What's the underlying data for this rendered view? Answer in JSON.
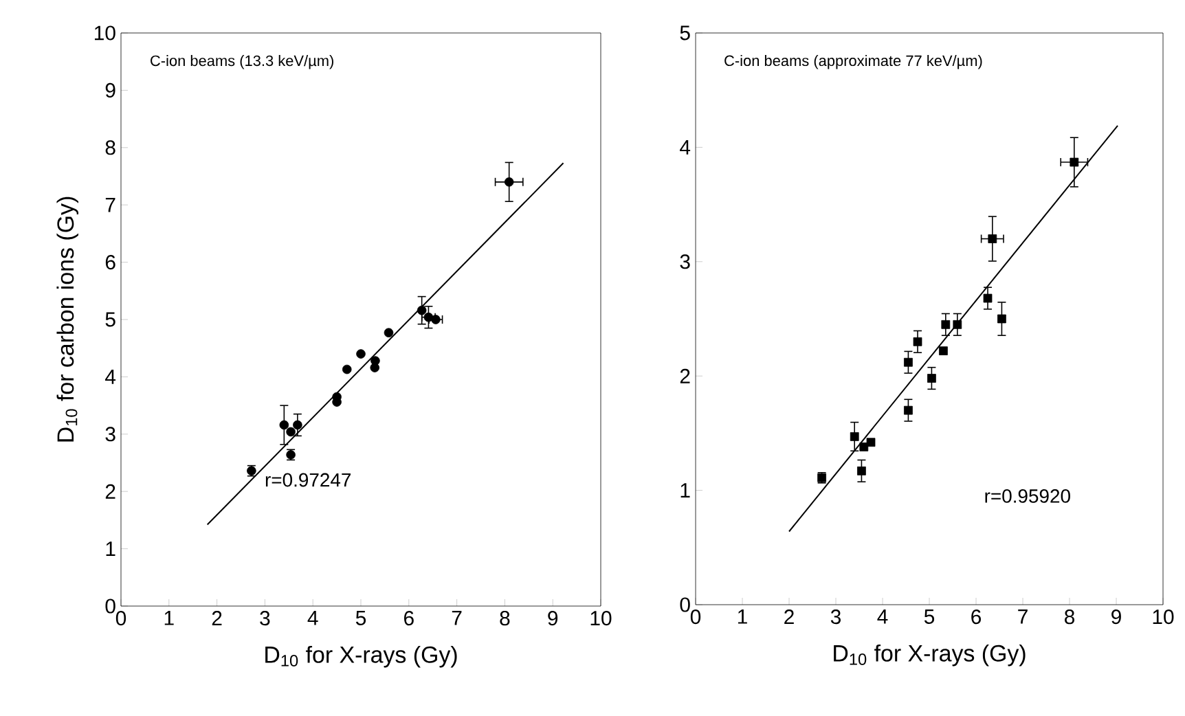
{
  "chart_data": [
    {
      "type": "scatter",
      "xlabel": "D$_{10}$ for X-rays (Gy)",
      "ylabel": "D$_{10}$ for carbon ions  (Gy)",
      "annotations": [
        "C-ion beams (13.3 keV/µm)",
        "r=0.97247"
      ],
      "xlim": [
        0,
        10
      ],
      "ylim": [
        0,
        10
      ],
      "xticks": [
        0,
        1,
        2,
        3,
        4,
        5,
        6,
        7,
        8,
        9,
        10
      ],
      "yticks": [
        0,
        1,
        2,
        3,
        4,
        5,
        6,
        7,
        8,
        9,
        10
      ],
      "series": [
        {
          "marker": "circle",
          "color": "#000000",
          "x": [
            2.72,
            3.4,
            3.54,
            3.54,
            3.68,
            4.5,
            4.5,
            4.71,
            5.0,
            5.29,
            5.3,
            5.58,
            6.27,
            6.41,
            6.56,
            8.09
          ],
          "values": [
            2.36,
            3.16,
            3.04,
            2.64,
            3.16,
            3.56,
            3.65,
            4.13,
            4.4,
            4.16,
            4.28,
            4.77,
            5.16,
            5.04,
            5.0,
            7.4
          ],
          "errors": [
            0.1,
            0.35,
            null,
            0.1,
            0.2,
            null,
            null,
            null,
            null,
            null,
            null,
            null,
            0.25,
            0.2,
            null,
            0.35
          ],
          "xerrors": [
            null,
            null,
            null,
            null,
            null,
            null,
            null,
            null,
            null,
            null,
            null,
            null,
            null,
            0.15,
            0.15,
            0.3
          ]
        },
        {
          "type": "line",
          "marker": "none",
          "color": "#000000",
          "x": [
            1.8,
            9.22
          ],
          "values": [
            1.42,
            7.73
          ]
        }
      ]
    },
    {
      "type": "scatter",
      "xlabel": "D$_{10}$ for X-rays (Gy)",
      "annotations": [
        "C-ion beams (approximate 77 keV/µm)",
        "r=0.95920"
      ],
      "xlim": [
        0,
        10
      ],
      "ylim": [
        0,
        5
      ],
      "xticks": [
        0,
        1,
        2,
        3,
        4,
        5,
        6,
        7,
        8,
        9,
        10
      ],
      "yticks": [
        0,
        1,
        2,
        3,
        4,
        5
      ],
      "series": [
        {
          "marker": "square",
          "color": "#000000",
          "x": [
            2.7,
            3.4,
            3.55,
            3.6,
            3.75,
            4.55,
            4.55,
            4.75,
            5.05,
            5.3,
            5.35,
            5.6,
            6.25,
            6.35,
            6.55,
            8.1
          ],
          "values": [
            1.11,
            1.47,
            1.17,
            1.38,
            1.42,
            1.7,
            2.12,
            2.3,
            1.98,
            2.22,
            2.45,
            2.45,
            2.68,
            3.2,
            2.5,
            3.87
          ],
          "errors": [
            0.05,
            0.13,
            0.1,
            null,
            null,
            0.1,
            0.1,
            0.1,
            0.1,
            null,
            0.1,
            0.1,
            0.1,
            0.2,
            0.15,
            0.22
          ],
          "xerrors": [
            null,
            null,
            null,
            null,
            null,
            null,
            null,
            null,
            null,
            null,
            null,
            null,
            null,
            0.25,
            null,
            0.3
          ]
        },
        {
          "type": "line",
          "marker": "none",
          "color": "#000000",
          "x": [
            2.0,
            9.03
          ],
          "values": [
            0.64,
            4.19
          ]
        }
      ]
    }
  ]
}
